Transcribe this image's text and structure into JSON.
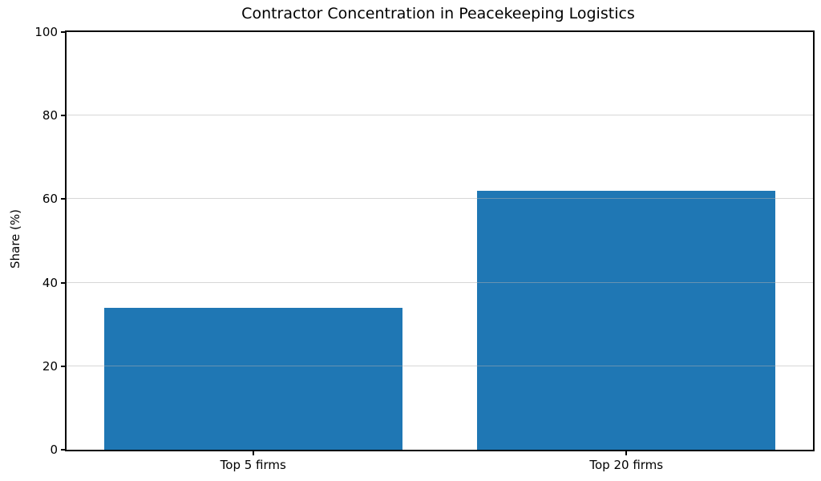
{
  "chart_data": {
    "type": "bar",
    "title": "Contractor Concentration in Peacekeeping Logistics",
    "categories": [
      "Top 5 firms",
      "Top 20 firms"
    ],
    "values": [
      34,
      62
    ],
    "xlabel": "",
    "ylabel": "Share (%)",
    "ylim": [
      0,
      100
    ],
    "yticks": [
      0,
      20,
      40,
      60,
      80,
      100
    ],
    "grid": "horizontal-only",
    "legend": "none",
    "colors": {
      "bar": "#1f77b4",
      "gridline": "rgba(176,176,176,0.5)",
      "spine": "#000000",
      "text": "#000000",
      "background": "#ffffff"
    }
  }
}
